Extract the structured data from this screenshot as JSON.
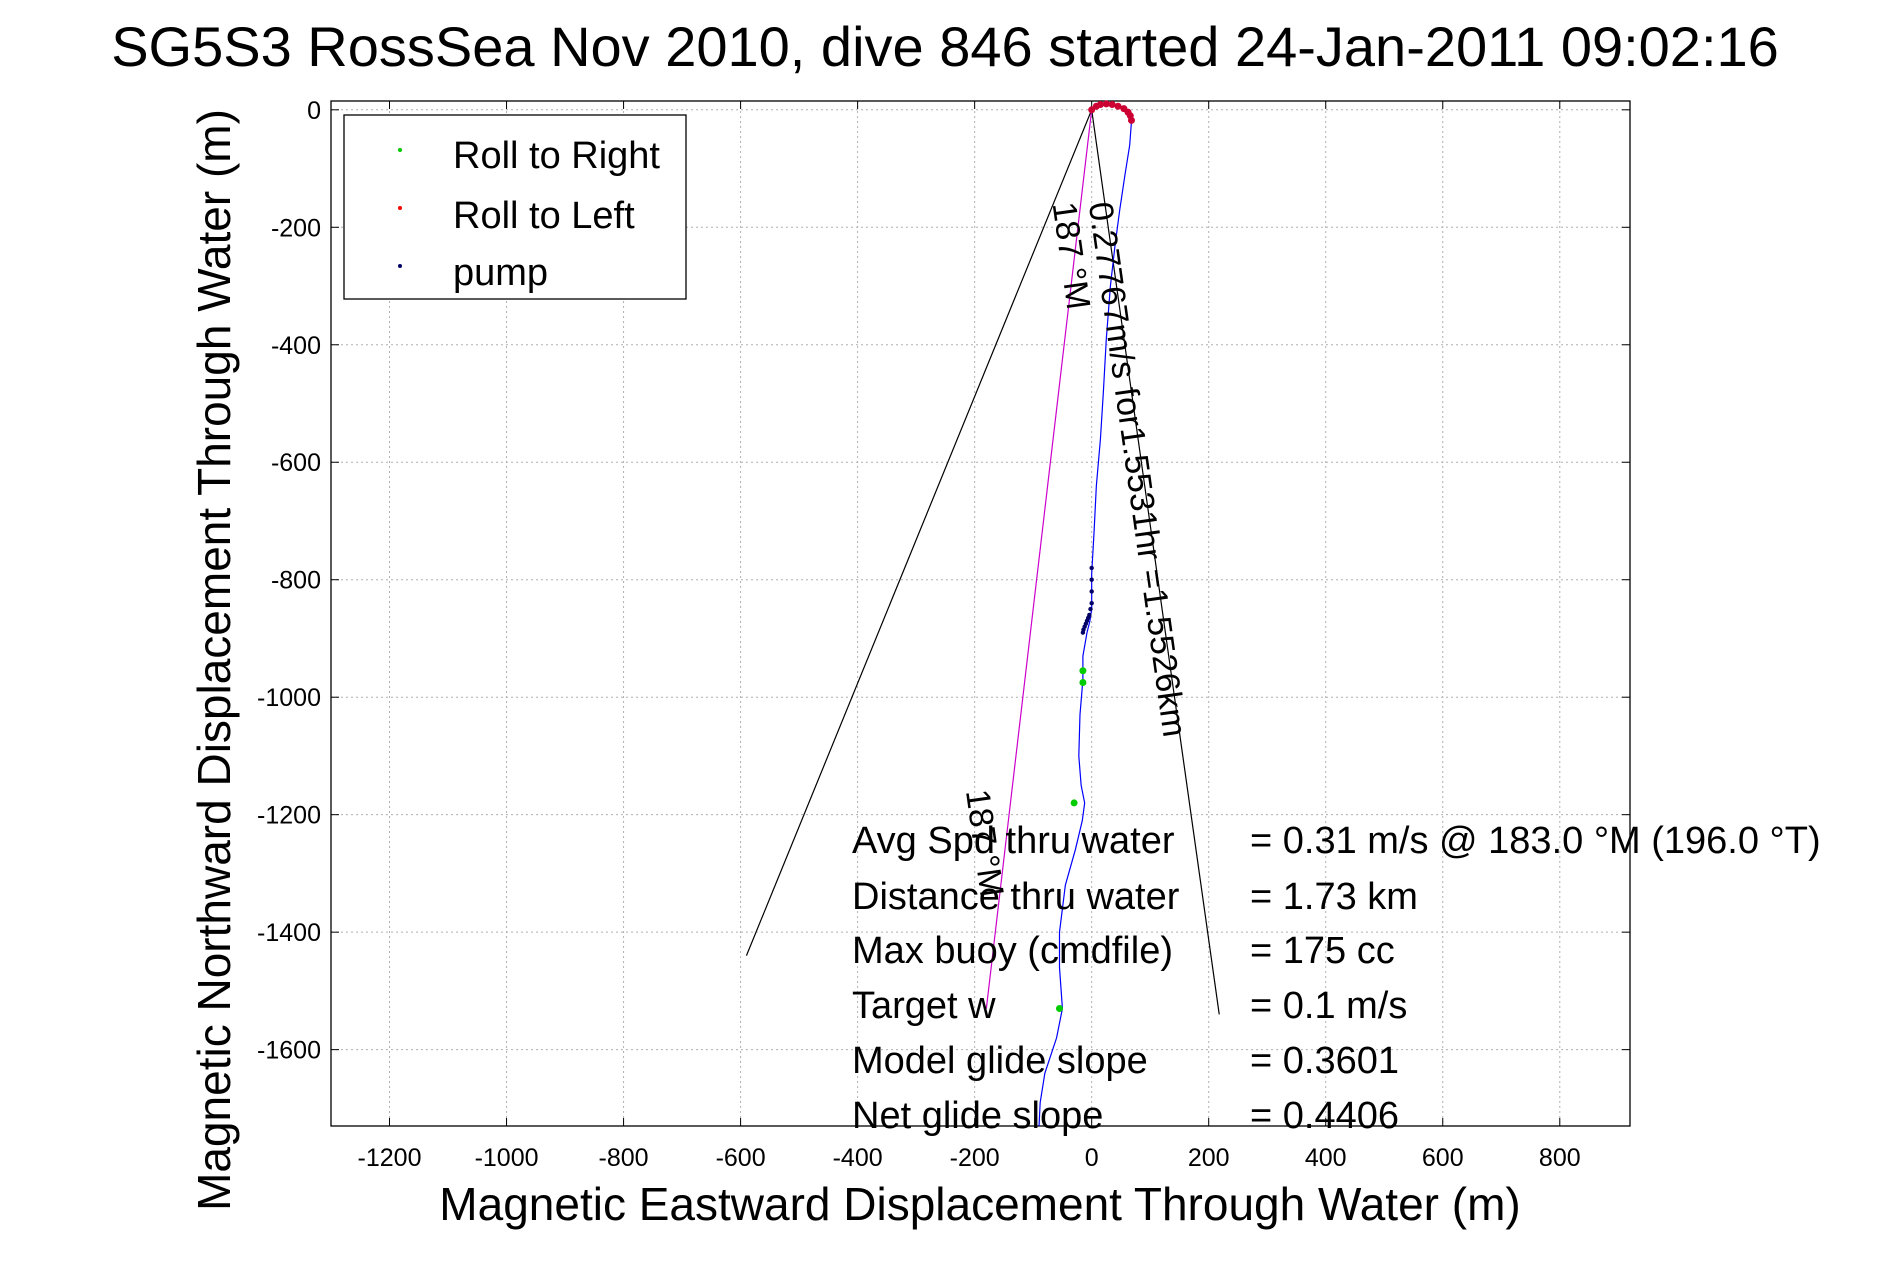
{
  "chart_data": {
    "type": "line",
    "title": "SG5S3 RossSea Nov 2010, dive 846 started 24-Jan-2011 09:02:16",
    "xlabel": "Magnetic Eastward Displacement Through Water (m)",
    "ylabel": "Magnetic Northward Displacement Through Water (m)",
    "xlim": [
      -1300,
      920
    ],
    "ylim": [
      -1730,
      15
    ],
    "xticks": [
      -1200,
      -1000,
      -800,
      -600,
      -400,
      -200,
      0,
      200,
      400,
      600,
      800
    ],
    "yticks": [
      0,
      -200,
      -400,
      -600,
      -800,
      -1000,
      -1200,
      -1400,
      -1600
    ],
    "grid": true,
    "legend_position": "top-left",
    "legend": [
      {
        "label": "Roll to Right",
        "color": "#00cc00"
      },
      {
        "label": "Roll to Left",
        "color": "#ff0000"
      },
      {
        "label": "pump",
        "color": "#000066"
      }
    ],
    "track": {
      "name": "track",
      "color": "#0000ff",
      "x": [
        0,
        10,
        30,
        50,
        62,
        68,
        65,
        57,
        48,
        40,
        32,
        25,
        20,
        15,
        8,
        4,
        0,
        0,
        -3,
        -8,
        -15,
        -15,
        -20,
        -22,
        -18,
        -12,
        -16,
        -28,
        -45,
        -55,
        -55,
        -50,
        -60,
        -80,
        -88,
        -90
      ],
      "y": [
        0,
        8,
        10,
        5,
        -5,
        -20,
        -60,
        -110,
        -170,
        -230,
        -300,
        -390,
        -480,
        -560,
        -640,
        -720,
        -790,
        -850,
        -870,
        -890,
        -930,
        -970,
        -1030,
        -1100,
        -1150,
        -1180,
        -1210,
        -1260,
        -1320,
        -1400,
        -1460,
        -1530,
        -1580,
        -1640,
        -1690,
        -1730
      ]
    },
    "roll_right": {
      "name": "Roll to Right",
      "color": "#00cc00",
      "x": [
        -15,
        -15,
        -30,
        -55
      ],
      "y": [
        -955,
        -975,
        -1180,
        -1530
      ]
    },
    "roll_left": {
      "name": "Roll to Left",
      "color": "#cc0033",
      "x": [
        0,
        8,
        15,
        25,
        35,
        45,
        55,
        62,
        66,
        68
      ],
      "y": [
        0,
        6,
        9,
        10,
        9,
        6,
        2,
        -4,
        -10,
        -18
      ]
    },
    "pump": {
      "name": "pump",
      "color": "#000066",
      "x": [
        0,
        0,
        0,
        0,
        -2,
        -4,
        -6,
        -8,
        -10,
        -12,
        -14,
        -15
      ],
      "y": [
        -780,
        -800,
        -820,
        -840,
        -850,
        -860,
        -865,
        -870,
        -875,
        -880,
        -885,
        -890
      ]
    },
    "cone_lines": {
      "color": "#000000",
      "segments": [
        {
          "x": [
            0,
            -590
          ],
          "y": [
            0,
            -1440
          ]
        },
        {
          "x": [
            0,
            218
          ],
          "y": [
            0,
            -1540
          ]
        }
      ]
    },
    "heading_line": {
      "color": "#cc00cc",
      "x": [
        0,
        -180
      ],
      "y": [
        0,
        -1530
      ]
    },
    "annotations": [
      {
        "text": "0.27767m/s for1.5531hr =1.5526km",
        "x": -5,
        "y": -160,
        "rotation": 82
      },
      {
        "text": "187 °M",
        "x": -67,
        "y": -160,
        "rotation": 82
      },
      {
        "text": "187 °M",
        "x": -215,
        "y": -1160,
        "rotation": 82
      }
    ],
    "stats": [
      {
        "label": "Avg Spd thru water",
        "value": "=  0.31 m/s @ 183.0 °M (196.0 °T)"
      },
      {
        "label": "Distance thru water",
        "value": "=  1.73 km"
      },
      {
        "label": "Max buoy (cmdfile)",
        "value": "= 175 cc"
      },
      {
        "label": "Target w",
        "value": "= 0.1 m/s"
      },
      {
        "label": "Model glide slope",
        "value": "= 0.3601"
      },
      {
        "label": "Net glide slope",
        "value": "= 0.4406"
      }
    ]
  }
}
